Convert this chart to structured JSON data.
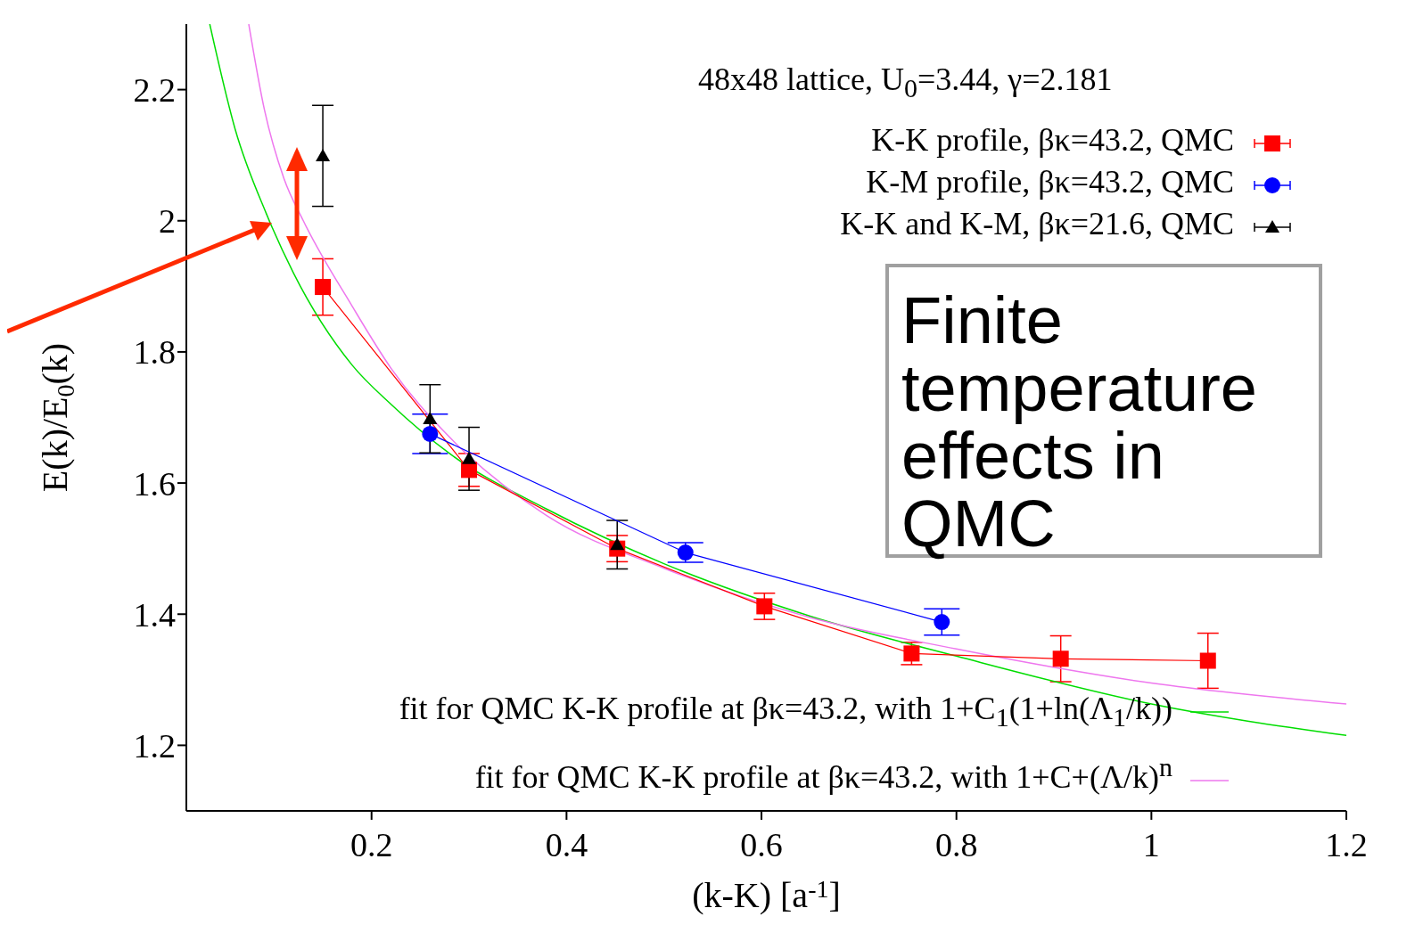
{
  "chart_data": {
    "type": "scatter",
    "xlabel": "(k-K) [a$^{-1}$]",
    "ylabel": "E(k)/E$_{0}$(k)",
    "annotations": [
      "48x48 lattice, U$_{0}$=3.44, γ=2.181",
      "Finite temperature effects in QMC"
    ],
    "xlim": [
      0.01,
      1.2
    ],
    "xticks": [
      0.2,
      0.4,
      0.6,
      0.8,
      1,
      1.2
    ],
    "ylim": [
      1.1,
      2.3
    ],
    "yticks": [
      1.2,
      1.4,
      1.6,
      1.8,
      2,
      2.2
    ],
    "grid": false,
    "legend": "right",
    "series": [
      {
        "name": "K-K profile, βκ=43.2, QMC",
        "type": "line",
        "marker": "square",
        "color": "#ff0000",
        "x": [
          0.15,
          0.3,
          0.452,
          0.603,
          0.754,
          0.907,
          1.058
        ],
        "values": [
          1.899,
          1.62,
          1.5,
          1.412,
          1.34,
          1.332,
          1.329
        ],
        "errors": [
          0.043,
          0.025,
          0.02,
          0.02,
          0.017,
          0.035,
          0.042
        ]
      },
      {
        "name": "K-M profile, βκ=43.2, QMC",
        "type": "line",
        "marker": "circle",
        "color": "#0000ff",
        "x": [
          0.26,
          0.522,
          0.785
        ],
        "values": [
          1.675,
          1.494,
          1.388
        ],
        "errors": [
          0.03,
          0.015,
          0.02
        ]
      },
      {
        "name": "K-K and K-M, βκ=21.6, QMC",
        "marker": "triangle",
        "color": "#000000",
        "x": [
          0.15,
          0.26,
          0.3,
          0.452
        ],
        "values": [
          2.099,
          1.698,
          1.637,
          1.506
        ],
        "errors": [
          0.077,
          0.052,
          0.048,
          0.037
        ]
      },
      {
        "name": "fit for QMC K-K profile at βκ=43.2, with 1+C$_{1}$(1+ln(Λ$_{1}$/k))",
        "type": "line",
        "marker": "none",
        "color": "#00dd00",
        "x": [
          0.034,
          0.06,
          0.092,
          0.12,
          0.18,
          0.22,
          0.28,
          0.38,
          0.5,
          0.65,
          0.8,
          1,
          1.2
        ],
        "values": [
          2.3,
          2.14,
          2.011,
          1.92,
          1.78,
          1.72,
          1.645,
          1.56,
          1.477,
          1.397,
          1.336,
          1.263,
          1.215
        ]
      },
      {
        "name": "fit for QMC K-K profile at βκ=43.2, with 1+C+(Λ/k)$^{n}$",
        "type": "line",
        "marker": "none",
        "color": "#ee77ee",
        "x": [
          0.074,
          0.09,
          0.11,
          0.13,
          0.18,
          0.22,
          0.28,
          0.38,
          0.5,
          0.65,
          0.8,
          1,
          1.2
        ],
        "values": [
          2.3,
          2.17,
          2.065,
          2.0,
          1.87,
          1.775,
          1.67,
          1.55,
          1.47,
          1.395,
          1.347,
          1.295,
          1.263
        ]
      }
    ]
  }
}
